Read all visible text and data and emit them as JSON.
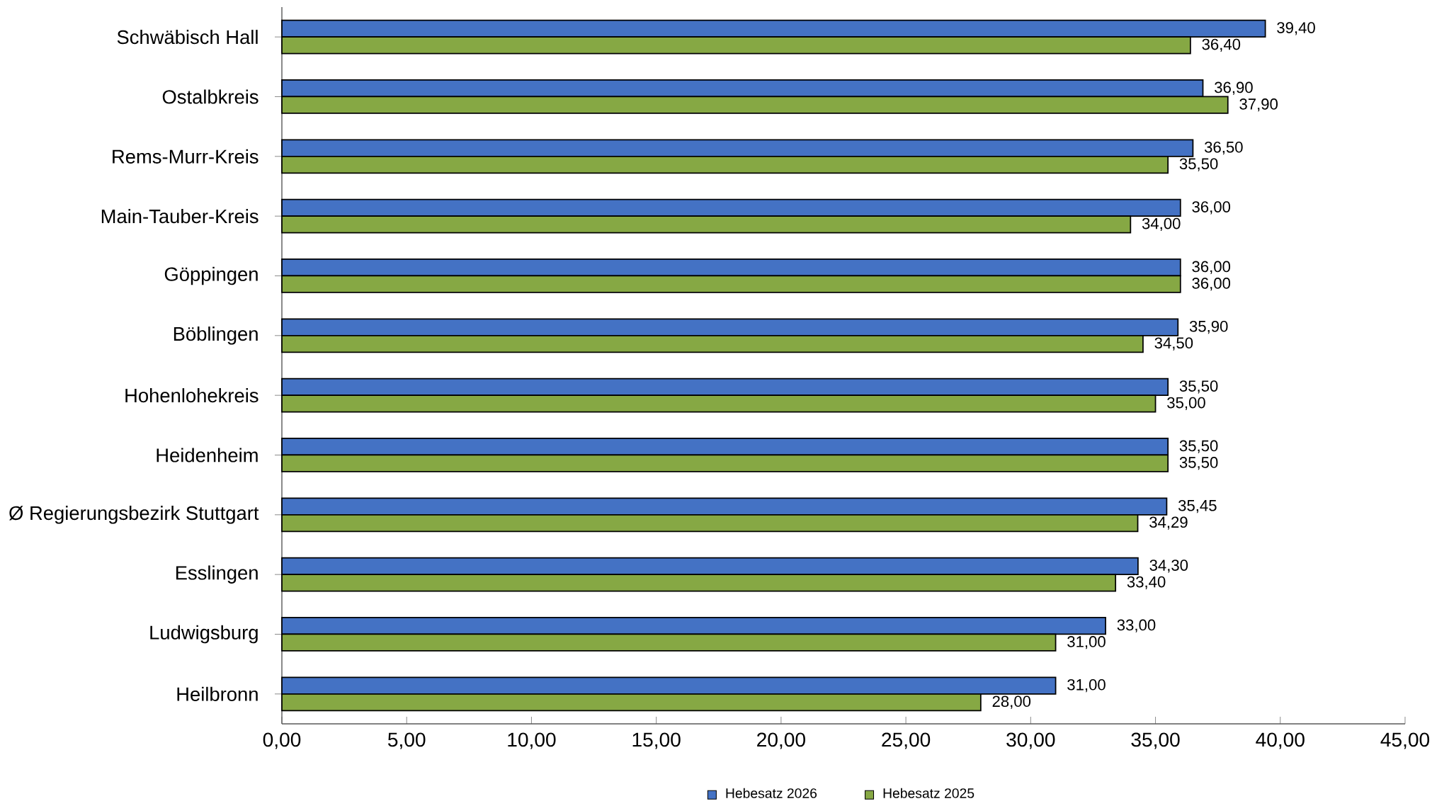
{
  "chart_data": {
    "type": "bar",
    "orientation": "horizontal",
    "categories": [
      "Schwäbisch Hall",
      "Ostalbkreis",
      "Rems-Murr-Kreis",
      "Main-Tauber-Kreis",
      "Göppingen",
      "Böblingen",
      "Hohenlohekreis",
      "Heidenheim",
      "Ø Regierungsbezirk Stuttgart",
      "Esslingen",
      "Ludwigsburg",
      "Heilbronn"
    ],
    "series": [
      {
        "name": "Hebesatz 2026",
        "color": "#4472c4",
        "values": [
          39.4,
          36.9,
          36.5,
          36.0,
          36.0,
          35.9,
          35.5,
          35.5,
          35.45,
          34.3,
          33.0,
          31.0
        ],
        "value_labels": [
          "39,40",
          "36,90",
          "36,50",
          "36,00",
          "36,00",
          "35,90",
          "35,50",
          "35,50",
          "35,45",
          "34,30",
          "33,00",
          "31,00"
        ]
      },
      {
        "name": "Hebesatz 2025",
        "color": "#86a844",
        "values": [
          36.4,
          37.9,
          35.5,
          34.0,
          36.0,
          34.5,
          35.0,
          35.5,
          34.29,
          33.4,
          31.0,
          28.0
        ],
        "value_labels": [
          "36,40",
          "37,90",
          "35,50",
          "34,00",
          "36,00",
          "34,50",
          "35,00",
          "35,50",
          "34,29",
          "33,40",
          "31,00",
          "28,00"
        ]
      }
    ],
    "xlim": [
      0,
      45
    ],
    "xticks": [
      {
        "value": 0,
        "label": "0,00"
      },
      {
        "value": 5,
        "label": "5,00"
      },
      {
        "value": 10,
        "label": "10,00"
      },
      {
        "value": 15,
        "label": "15,00"
      },
      {
        "value": 20,
        "label": "20,00"
      },
      {
        "value": 25,
        "label": "25,00"
      },
      {
        "value": 30,
        "label": "30,00"
      },
      {
        "value": 35,
        "label": "35,00"
      },
      {
        "value": 40,
        "label": "40,00"
      },
      {
        "value": 45,
        "label": "45,00"
      }
    ],
    "legend": "bottom",
    "grid": false
  }
}
